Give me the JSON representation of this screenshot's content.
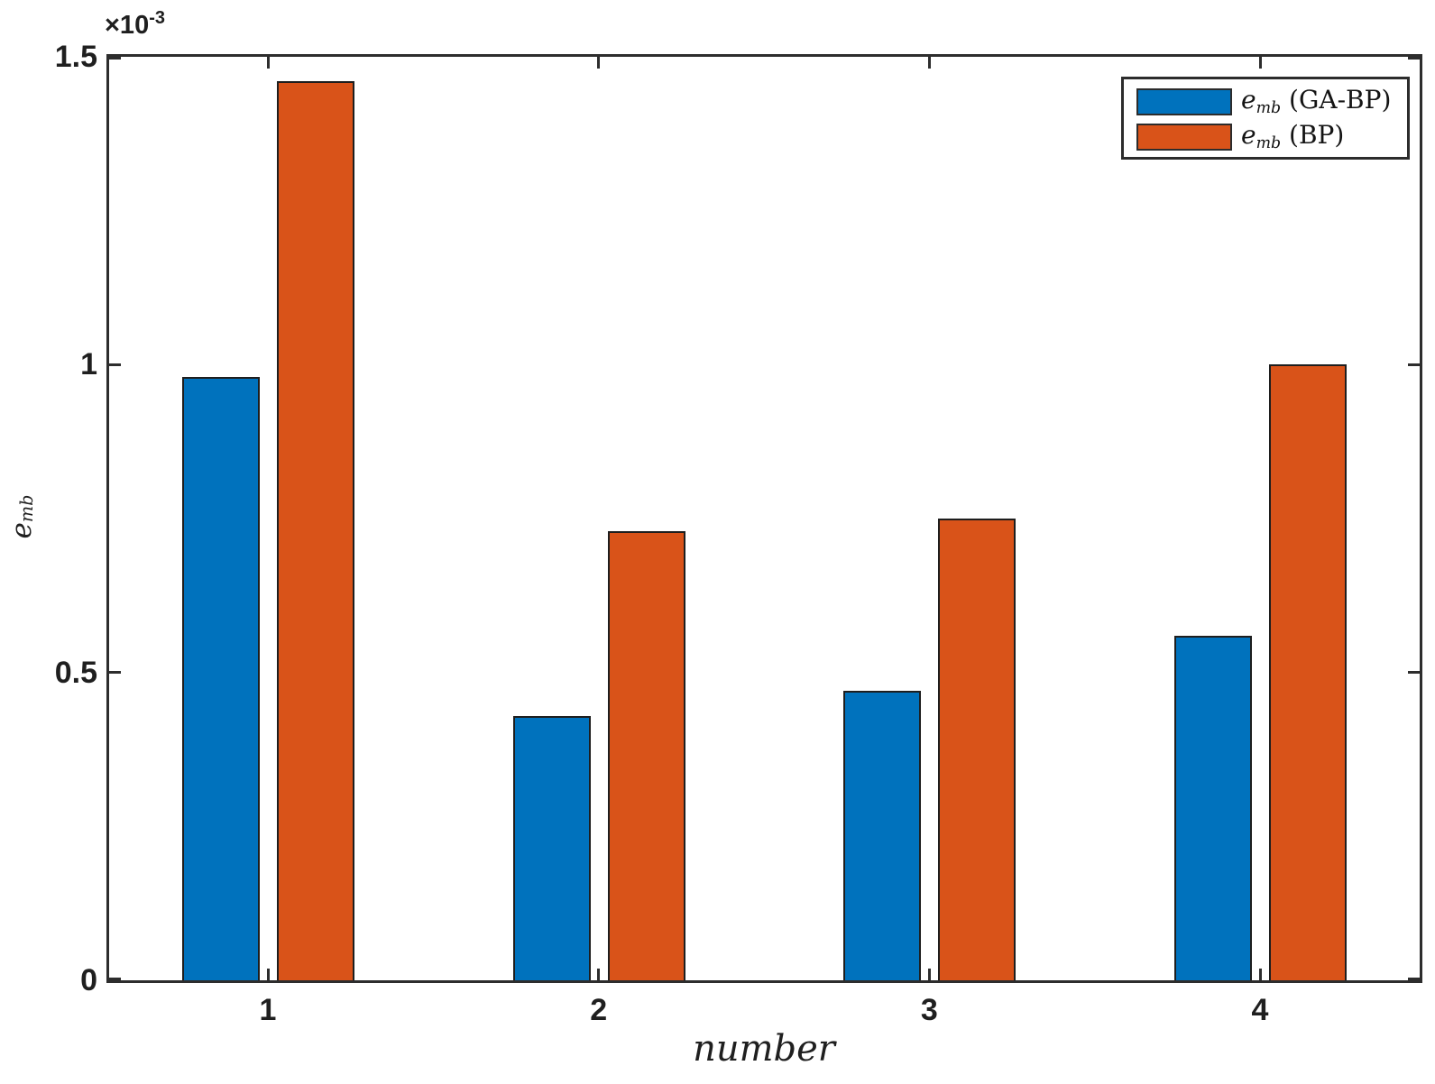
{
  "chart_data": {
    "type": "bar",
    "title": "",
    "categories": [
      "1",
      "2",
      "3",
      "4"
    ],
    "series": [
      {
        "name": "e_mb (GA-BP)",
        "key": "ga-bp",
        "color": "#0072BD",
        "values": [
          0.00098,
          0.00043,
          0.00047,
          0.00056
        ]
      },
      {
        "name": "e_mb (BP)",
        "key": "bp",
        "color": "#D95319",
        "values": [
          0.00146,
          0.00073,
          0.00075,
          0.001
        ]
      }
    ],
    "xlabel": "number",
    "ylabel": "e_mb",
    "xlim": [
      0.5,
      4.5
    ],
    "ylim": [
      0,
      0.0015
    ],
    "yticks": [
      {
        "value": 0,
        "label": "0"
      },
      {
        "value": 0.0005,
        "label": "0.5"
      },
      {
        "value": 0.001,
        "label": "1"
      },
      {
        "value": 0.0015,
        "label": "1.5"
      }
    ],
    "y_exponent": {
      "base": "×10",
      "sup": "-3"
    },
    "legend_position": "top-right",
    "grid": false
  },
  "labels": {
    "ylabel": {
      "base": "e",
      "sub": "mb"
    },
    "xlabel": "number"
  },
  "legend": {
    "entries": [
      {
        "base": "e",
        "sub": "mb",
        "suffix": " (GA-BP)",
        "color": "#0072BD"
      },
      {
        "base": "e",
        "sub": "mb",
        "suffix": " (BP)",
        "color": "#D95319"
      }
    ]
  },
  "colors": {
    "background": "#ffffff",
    "axis": "#2d2d2d",
    "text": "#1f1f1f",
    "series_blue": "#0072BD",
    "series_orange": "#D95319"
  }
}
